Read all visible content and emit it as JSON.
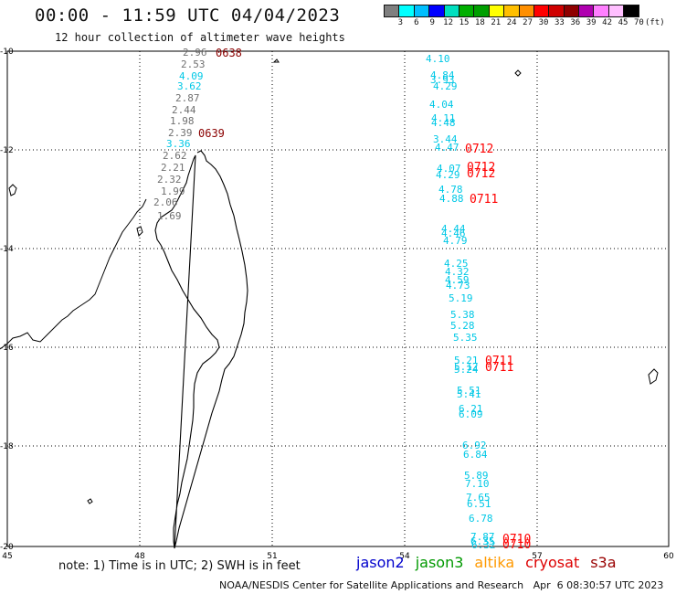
{
  "header": {
    "title": "00:00 - 11:59 UTC 04/04/2023",
    "subtitle": "12 hour collection of altimeter wave heights"
  },
  "colorbar": {
    "colors": [
      "#7f7f7f",
      "#00ffff",
      "#00bfff",
      "#0000ff",
      "#00dfbf",
      "#00af00",
      "#009f00",
      "#ffff00",
      "#ffbf00",
      "#ff8f00",
      "#ff0000",
      "#cf0000",
      "#8f0000",
      "#af00af",
      "#ff7fff",
      "#ffbfff",
      "#000000"
    ],
    "labels": [
      "3",
      "6",
      "9",
      "12",
      "15",
      "18",
      "21",
      "24",
      "27",
      "30",
      "33",
      "36",
      "39",
      "42",
      "45",
      "70",
      "(ft)"
    ]
  },
  "map": {
    "lon_ticks": [
      "45",
      "48",
      "51",
      "54",
      "57",
      "60"
    ],
    "lat_ticks": [
      "-10",
      "-12",
      "-14",
      "-16",
      "-18",
      "-20"
    ],
    "colors": {
      "gray": "#707070",
      "cyan": "#00c8e6",
      "darkred": "#8b0000",
      "red": "#ff0000"
    }
  },
  "tracks": {
    "west": {
      "color": "cyan",
      "heights": [
        {
          "v": "2.96",
          "c": "gray"
        },
        {
          "v": "2.53",
          "c": "gray"
        },
        {
          "v": "4.09",
          "c": "cyan"
        },
        {
          "v": "3.62",
          "c": "cyan"
        },
        {
          "v": "2.87",
          "c": "gray"
        },
        {
          "v": "2.44",
          "c": "gray"
        },
        {
          "v": "1.98",
          "c": "gray"
        },
        {
          "v": "2.39",
          "c": "gray"
        },
        {
          "v": "3.36",
          "c": "cyan"
        },
        {
          "v": "2.62",
          "c": "gray"
        },
        {
          "v": "2.21",
          "c": "gray"
        },
        {
          "v": "2.32",
          "c": "gray"
        },
        {
          "v": "1.99",
          "c": "gray"
        },
        {
          "v": "2.06",
          "c": "gray"
        },
        {
          "v": "1.69",
          "c": "gray"
        }
      ],
      "times": [
        "0638",
        "0639"
      ]
    },
    "east": {
      "heights": [
        "4.10",
        "4.84",
        "3.93",
        "4.29",
        "4.04",
        "4.11",
        "4.48",
        "3.44",
        "4.47",
        "4.07",
        "4.29",
        "4.78",
        "4.88",
        "4.44",
        "4.46",
        "4.79",
        "4.25",
        "4.32",
        "4.59",
        "4.73",
        "5.19",
        "5.38",
        "5.28",
        "5.35",
        "5.21",
        "5.12",
        "5.24",
        "5.51",
        "5.41",
        "6.21",
        "6.09",
        "6.92",
        "6.84",
        "5.89",
        "7.10",
        "7.65",
        "6.51",
        "6.78",
        "7.87",
        "6.35",
        "6.32"
      ],
      "times": [
        "0712",
        "0712",
        "0712",
        "0711",
        "0711",
        "0711",
        "0710",
        "0710"
      ]
    }
  },
  "footer": {
    "note": "note: 1) Time is in UTC; 2) SWH is in feet",
    "credit": "NOAA/NESDIS Center for Satellite Applications and Research   Apr  6 08:30:57 UTC 2023",
    "satellites": [
      {
        "name": "jason2",
        "color": "#0000cc"
      },
      {
        "name": "jason3",
        "color": "#009900"
      },
      {
        "name": "altika",
        "color": "#ff9900"
      },
      {
        "name": "cryosat",
        "color": "#dd0000"
      },
      {
        "name": "s3a",
        "color": "#990000"
      }
    ]
  }
}
